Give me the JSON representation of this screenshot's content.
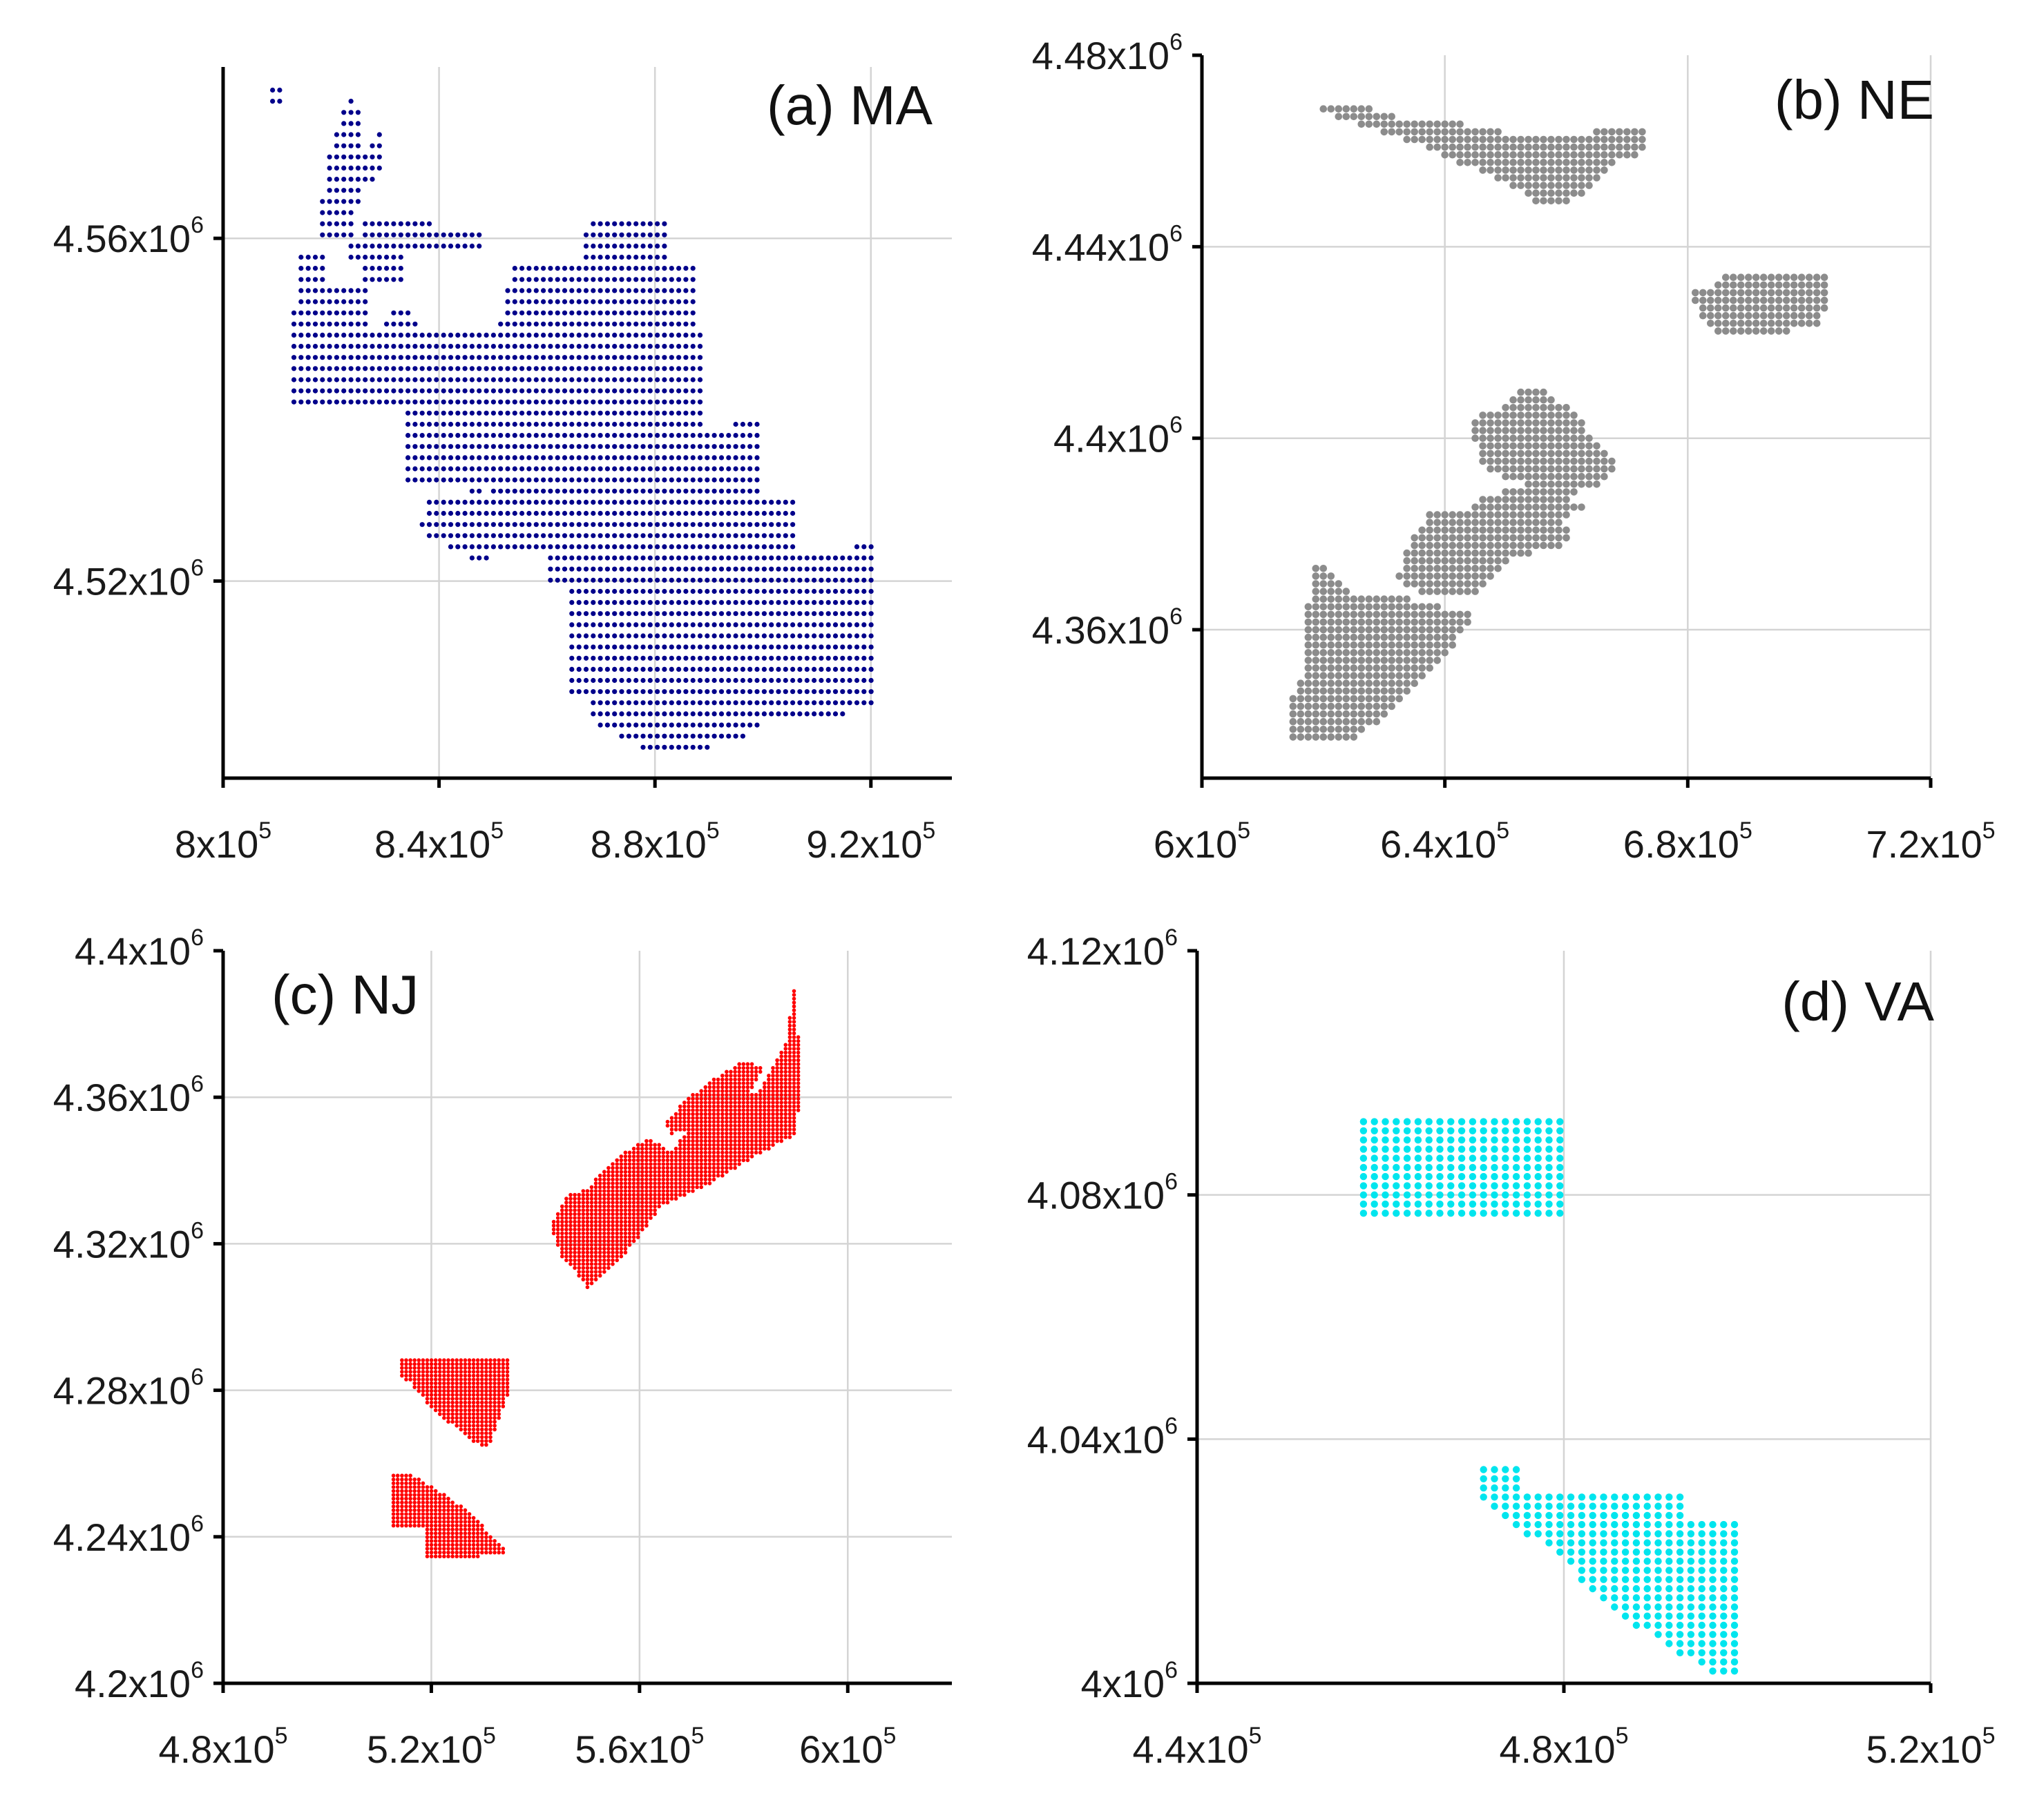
{
  "chart_data": [
    {
      "type": "scatter",
      "title": "(a) MA",
      "color": "#00008b",
      "xlim": [
        800000,
        935000
      ],
      "ylim": [
        4497000,
        4580000
      ],
      "xticks": [
        800000,
        840000,
        880000,
        920000
      ],
      "xtick_labels": [
        {
          "base": "8x10",
          "exp": "5"
        },
        {
          "base": "8.4x10",
          "exp": "5"
        },
        {
          "base": "8.8x10",
          "exp": "5"
        },
        {
          "base": "9.2x10",
          "exp": "5"
        }
      ],
      "yticks": [
        4520000,
        4560000
      ],
      "ytick_labels": [
        {
          "base": "4.52x10",
          "exp": "6"
        },
        {
          "base": "4.56x10",
          "exp": "6"
        }
      ],
      "xgrid": [
        840000,
        880000,
        920000
      ],
      "ygrid": [
        4520000,
        4560000
      ],
      "grid": true,
      "spacing": [
        1320,
        1300
      ],
      "regions": [
        [
          [
            809000,
            4576000
          ],
          [
            811000,
            4576000
          ],
          [
            811000,
            4578000
          ],
          [
            809000,
            4578000
          ]
        ],
        [
          [
            818000,
            4563000
          ],
          [
            819000,
            4569000
          ],
          [
            823000,
            4577000
          ],
          [
            825000,
            4576000
          ],
          [
            826000,
            4570000
          ],
          [
            829000,
            4573000
          ],
          [
            830000,
            4568000
          ],
          [
            826000,
            4566000
          ],
          [
            824000,
            4560000
          ],
          [
            818000,
            4560000
          ]
        ],
        [
          [
            823000,
            4557000
          ],
          [
            823000,
            4560000
          ],
          [
            826000,
            4560000
          ],
          [
            826000,
            4563000
          ],
          [
            839000,
            4563000
          ],
          [
            839000,
            4561000
          ],
          [
            848000,
            4561000
          ],
          [
            848000,
            4558000
          ],
          [
            833000,
            4558000
          ],
          [
            833000,
            4554000
          ],
          [
            826000,
            4554000
          ],
          [
            826000,
            4557000
          ]
        ],
        [
          [
            814000,
            4550000
          ],
          [
            814000,
            4558000
          ],
          [
            819000,
            4558000
          ],
          [
            819000,
            4555000
          ],
          [
            827000,
            4555000
          ],
          [
            827000,
            4550000
          ]
        ],
        [
          [
            866000,
            4557000
          ],
          [
            866000,
            4561000
          ],
          [
            869000,
            4562000
          ],
          [
            883000,
            4562000
          ],
          [
            883000,
            4557000
          ]
        ],
        [
          [
            812000,
            4541000
          ],
          [
            813000,
            4552000
          ],
          [
            815000,
            4550000
          ],
          [
            830000,
            4550000
          ],
          [
            832000,
            4553000
          ],
          [
            836000,
            4550000
          ],
          [
            851000,
            4550000
          ],
          [
            853000,
            4556000
          ],
          [
            855000,
            4557000
          ],
          [
            868000,
            4557000
          ],
          [
            888000,
            4557000
          ],
          [
            889000,
            4535000
          ],
          [
            875000,
            4534000
          ],
          [
            855000,
            4532000
          ],
          [
            845000,
            4530000
          ],
          [
            845000,
            4531000
          ],
          [
            833000,
            4531000
          ],
          [
            833000,
            4540000
          ],
          [
            824000,
            4540000
          ],
          [
            817000,
            4540000
          ]
        ],
        [
          [
            838000,
            4513000
          ],
          [
            838000,
            4530000
          ],
          [
            849000,
            4530000
          ],
          [
            849000,
            4535000
          ],
          [
            886000,
            4537000
          ],
          [
            899000,
            4539000
          ],
          [
            899000,
            4527000
          ],
          [
            882000,
            4527000
          ],
          [
            862000,
            4527000
          ],
          [
            860000,
            4524000
          ],
          [
            850000,
            4524000
          ],
          [
            850000,
            4521000
          ],
          [
            836000,
            4526000
          ],
          [
            836000,
            4527000
          ],
          [
            837000,
            4527000
          ],
          [
            837000,
            4513000
          ]
        ],
        [
          [
            860000,
            4519000
          ],
          [
            860000,
            4530000
          ],
          [
            906000,
            4530000
          ],
          [
            906000,
            4519000
          ]
        ],
        [
          [
            864000,
            4506000
          ],
          [
            864000,
            4521000
          ],
          [
            917000,
            4524000
          ],
          [
            920000,
            4525000
          ],
          [
            921000,
            4521000
          ],
          [
            921000,
            4505000
          ],
          [
            897000,
            4503000
          ],
          [
            897000,
            4501000
          ],
          [
            880000,
            4500000
          ],
          [
            869000,
            4503000
          ],
          [
            868000,
            4506000
          ]
        ]
      ]
    },
    {
      "type": "scatter",
      "title": "(b) NE",
      "color": "#8c8c8c",
      "xlim": [
        600000,
        720000
      ],
      "ylim": [
        4329000,
        4480000
      ],
      "xticks": [
        600000,
        640000,
        680000,
        720000
      ],
      "xtick_labels": [
        {
          "base": "6x10",
          "exp": "5"
        },
        {
          "base": "6.4x10",
          "exp": "5"
        },
        {
          "base": "6.8x10",
          "exp": "5"
        },
        {
          "base": "7.2x10",
          "exp": "5"
        }
      ],
      "yticks": [
        4360000,
        4400000,
        4440000,
        4480000
      ],
      "ytick_labels": [
        {
          "base": "4.36x10",
          "exp": "6"
        },
        {
          "base": "4.4x10",
          "exp": "6"
        },
        {
          "base": "4.44x10",
          "exp": "6"
        },
        {
          "base": "4.48x10",
          "exp": "6"
        }
      ],
      "xgrid": [
        640000,
        680000,
        720000
      ],
      "ygrid": [
        4360000,
        4400000,
        4440000
      ],
      "grid": true,
      "spacing": [
        1250,
        1600
      ],
      "regions": [
        [
          [
            619000,
            4470000
          ],
          [
            625000,
            4470000
          ],
          [
            633000,
            4467000
          ],
          [
            641000,
            4466000
          ],
          [
            650000,
            4464000
          ],
          [
            660000,
            4463000
          ],
          [
            670000,
            4465000
          ],
          [
            673000,
            4465000
          ],
          [
            673000,
            4460000
          ],
          [
            669000,
            4458000
          ],
          [
            663000,
            4451000
          ],
          [
            657000,
            4448000
          ],
          [
            652000,
            4452000
          ],
          [
            640000,
            4459000
          ],
          [
            630000,
            4464000
          ],
          [
            622000,
            4467000
          ],
          [
            619000,
            4468000
          ]
        ],
        [
          [
            681000,
            4429000
          ],
          [
            681000,
            4432000
          ],
          [
            684000,
            4432000
          ],
          [
            687000,
            4435000
          ],
          [
            703000,
            4435000
          ],
          [
            703000,
            4429000
          ],
          [
            702000,
            4423000
          ],
          [
            685000,
            4421000
          ],
          [
            681000,
            4428000
          ]
        ],
        [
          [
            644000,
            4404000
          ],
          [
            649000,
            4406000
          ],
          [
            652000,
            4410000
          ],
          [
            656000,
            4410000
          ],
          [
            661000,
            4406000
          ],
          [
            664000,
            4401000
          ],
          [
            669000,
            4393000
          ],
          [
            663000,
            4389000
          ],
          [
            660000,
            4388000
          ],
          [
            655000,
            4391000
          ],
          [
            649000,
            4392000
          ],
          [
            646000,
            4395000
          ]
        ],
        [
          [
            648000,
            4388000
          ],
          [
            655000,
            4391000
          ],
          [
            660000,
            4388000
          ],
          [
            663000,
            4386000
          ],
          [
            655000,
            4379000
          ],
          [
            648000,
            4381000
          ],
          [
            646000,
            4385000
          ]
        ],
        [
          [
            634000,
            4378000
          ],
          [
            638000,
            4385000
          ],
          [
            644000,
            4385000
          ],
          [
            647000,
            4389000
          ],
          [
            655000,
            4385000
          ],
          [
            657000,
            4384000
          ],
          [
            661000,
            4380000
          ],
          [
            660000,
            4378000
          ],
          [
            651000,
            4375000
          ],
          [
            645000,
            4367000
          ],
          [
            637000,
            4367000
          ],
          [
            632000,
            4371000
          ]
        ],
        [
          [
            616000,
            4346000
          ],
          [
            618000,
            4373000
          ],
          [
            621000,
            4373000
          ],
          [
            625000,
            4367000
          ],
          [
            632000,
            4367000
          ],
          [
            637000,
            4366000
          ],
          [
            640000,
            4364000
          ],
          [
            642000,
            4365000
          ],
          [
            645000,
            4362000
          ],
          [
            640000,
            4355000
          ],
          [
            635000,
            4348000
          ],
          [
            631000,
            4343000
          ],
          [
            625000,
            4337000
          ],
          [
            615000,
            4337000
          ],
          [
            615000,
            4346000
          ]
        ]
      ]
    },
    {
      "type": "scatter",
      "title": "(c) NJ",
      "color": "#ff0000",
      "xlim": [
        480000,
        620000
      ],
      "ylim": [
        4200000,
        4400000
      ],
      "xticks": [
        480000,
        520000,
        560000,
        600000
      ],
      "xtick_labels": [
        {
          "base": "4.8x10",
          "exp": "5"
        },
        {
          "base": "5.2x10",
          "exp": "5"
        },
        {
          "base": "5.6x10",
          "exp": "5"
        },
        {
          "base": "6x10",
          "exp": "5"
        }
      ],
      "yticks": [
        4200000,
        4240000,
        4280000,
        4320000,
        4360000,
        4400000
      ],
      "ytick_labels": [
        {
          "base": "4.2x10",
          "exp": "6"
        },
        {
          "base": "4.24x10",
          "exp": "6"
        },
        {
          "base": "4.28x10",
          "exp": "6"
        },
        {
          "base": "4.32x10",
          "exp": "6"
        },
        {
          "base": "4.36x10",
          "exp": "6"
        },
        {
          "base": "4.4x10",
          "exp": "6"
        }
      ],
      "xgrid": [
        520000,
        560000,
        600000
      ],
      "ygrid": [
        4240000,
        4280000,
        4320000,
        4360000
      ],
      "grid": true,
      "spacing": [
        810,
        1050
      ],
      "regions": [
        [
          [
            543000,
            4325000
          ],
          [
            546000,
            4333000
          ],
          [
            550000,
            4335000
          ],
          [
            553000,
            4340000
          ],
          [
            557000,
            4345000
          ],
          [
            562000,
            4349000
          ],
          [
            566000,
            4345000
          ],
          [
            573000,
            4357000
          ],
          [
            583000,
            4362000
          ],
          [
            588000,
            4374000
          ],
          [
            590000,
            4392000
          ],
          [
            591000,
            4362000
          ],
          [
            590000,
            4350000
          ],
          [
            580000,
            4342000
          ],
          [
            572000,
            4335000
          ],
          [
            564000,
            4330000
          ],
          [
            559000,
            4320000
          ],
          [
            552000,
            4310000
          ],
          [
            550000,
            4308000
          ],
          [
            548000,
            4312000
          ],
          [
            545000,
            4316000
          ]
        ],
        [
          [
            565000,
            4353000
          ],
          [
            568000,
            4358000
          ],
          [
            573000,
            4364000
          ],
          [
            580000,
            4370000
          ],
          [
            584000,
            4368000
          ],
          [
            580000,
            4358000
          ],
          [
            573000,
            4352000
          ],
          [
            566000,
            4350000
          ]
        ],
        [
          [
            514000,
            4284000
          ],
          [
            514000,
            4289000
          ],
          [
            535000,
            4289000
          ],
          [
            535000,
            4280000
          ],
          [
            531000,
            4264000
          ],
          [
            528000,
            4266000
          ],
          [
            520000,
            4275000
          ],
          [
            516000,
            4282000
          ]
        ],
        [
          [
            512000,
            4243000
          ],
          [
            512000,
            4257000
          ],
          [
            516000,
            4257000
          ],
          [
            522000,
            4252000
          ],
          [
            528000,
            4246000
          ],
          [
            535000,
            4235000
          ],
          [
            519000,
            4234000
          ],
          [
            519000,
            4243000
          ]
        ]
      ]
    },
    {
      "type": "scatter",
      "title": "(d) VA",
      "color": "#00e5ee",
      "xlim": [
        440000,
        520000
      ],
      "ylim": [
        4000000,
        4120000
      ],
      "xticks": [
        440000,
        480000,
        520000
      ],
      "xtick_labels": [
        {
          "base": "4.4x10",
          "exp": "5"
        },
        {
          "base": "4.8x10",
          "exp": "5"
        },
        {
          "base": "5.2x10",
          "exp": "5"
        }
      ],
      "yticks": [
        4000000,
        4040000,
        4080000,
        4120000
      ],
      "ytick_labels": [
        {
          "base": "4x10",
          "exp": "6"
        },
        {
          "base": "4.04x10",
          "exp": "6"
        },
        {
          "base": "4.08x10",
          "exp": "6"
        },
        {
          "base": "4.12x10",
          "exp": "6"
        }
      ],
      "xgrid": [
        480000,
        520000
      ],
      "ygrid": [
        4040000,
        4080000
      ],
      "grid": true,
      "spacing": [
        1190,
        1500
      ],
      "regions": [
        [
          [
            457000,
            4083000
          ],
          [
            458000,
            4093000
          ],
          [
            480000,
            4093000
          ],
          [
            480000,
            4077000
          ],
          [
            458000,
            4077000
          ],
          [
            457000,
            4080000
          ]
        ],
        [
          [
            471000,
            4030000
          ],
          [
            471000,
            4036000
          ],
          [
            476000,
            4036000
          ],
          [
            476000,
            4031000
          ],
          [
            493000,
            4031000
          ],
          [
            493000,
            4027000
          ],
          [
            499000,
            4027000
          ],
          [
            499000,
            4001000
          ],
          [
            497000,
            4001000
          ],
          [
            485000,
            4012000
          ],
          [
            478000,
            4023000
          ],
          [
            474000,
            4026000
          ]
        ]
      ]
    }
  ]
}
